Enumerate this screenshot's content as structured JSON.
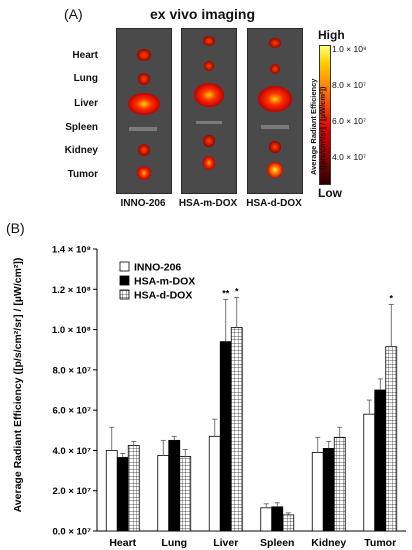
{
  "panel_a": {
    "tag": "(A)",
    "title": "ex vivo imaging",
    "organs": [
      "Heart",
      "Lung",
      "Liver",
      "Spleen",
      "Kidney",
      "Tumor"
    ],
    "groups": [
      "INNO-206",
      "HSA-m-DOX",
      "HSA-d-DOX"
    ],
    "colorbar": {
      "high": "High",
      "low": "Low",
      "ticks": [
        "1.0 × 10⁸",
        "8.0 × 10⁷",
        "6.0 × 10⁷",
        "4.0 × 10⁷"
      ],
      "label_line1": "Average Radiant Efficiency",
      "label_line2": "([p/s/cm²/sr] / [µW/cm²])"
    }
  },
  "panel_b": {
    "tag": "(B)"
  },
  "chart_data": {
    "type": "bar",
    "categories": [
      "Heart",
      "Lung",
      "Liver",
      "Spleen",
      "Kidney",
      "Tumor"
    ],
    "ylabel": "Average Radiant Efficiency ([p/s/cm²/sr] / [µW/cm²])",
    "ylim": [
      0,
      140000000
    ],
    "yticks": [
      {
        "value": 0,
        "label": "0.0 × 10⁷"
      },
      {
        "value": 20000000,
        "label": "2.0 × 10⁷"
      },
      {
        "value": 40000000,
        "label": "4.0 × 10⁷"
      },
      {
        "value": 60000000,
        "label": "6.0 × 10⁷"
      },
      {
        "value": 80000000,
        "label": "8.0 × 10⁷"
      },
      {
        "value": 100000000,
        "label": "1.0 × 10⁸"
      },
      {
        "value": 120000000,
        "label": "1.2 × 10⁸"
      },
      {
        "value": 140000000,
        "label": "1.4 × 10⁸"
      }
    ],
    "legend_position": "top-left",
    "series": [
      {
        "name": "INNO-206",
        "fill": "white",
        "values": [
          40000000,
          37500000,
          47000000,
          11500000,
          39000000,
          58000000
        ],
        "errors": [
          11500000,
          7500000,
          8500000,
          2000000,
          7500000,
          7000000
        ]
      },
      {
        "name": "HSA-m-DOX",
        "fill": "black",
        "values": [
          36500000,
          45000000,
          94000000,
          12000000,
          41000000,
          70000000
        ],
        "errors": [
          2000000,
          2000000,
          21000000,
          2000000,
          3500000,
          5500000
        ]
      },
      {
        "name": "HSA-d-DOX",
        "fill": "grid",
        "values": [
          42500000,
          37000000,
          101000000,
          8000000,
          46500000,
          91500000
        ],
        "errors": [
          2000000,
          3500000,
          15000000,
          1000000,
          5000000,
          21000000
        ]
      }
    ],
    "annotations": [
      {
        "category": "Liver",
        "series": "HSA-m-DOX",
        "text": "**"
      },
      {
        "category": "Liver",
        "series": "HSA-d-DOX",
        "text": "*"
      },
      {
        "category": "Tumor",
        "series": "HSA-d-DOX",
        "text": "*"
      }
    ],
    "colors": {
      "bar_stroke": "#000000",
      "dark_fill": "#000000",
      "light_fill": "#ffffff"
    }
  }
}
